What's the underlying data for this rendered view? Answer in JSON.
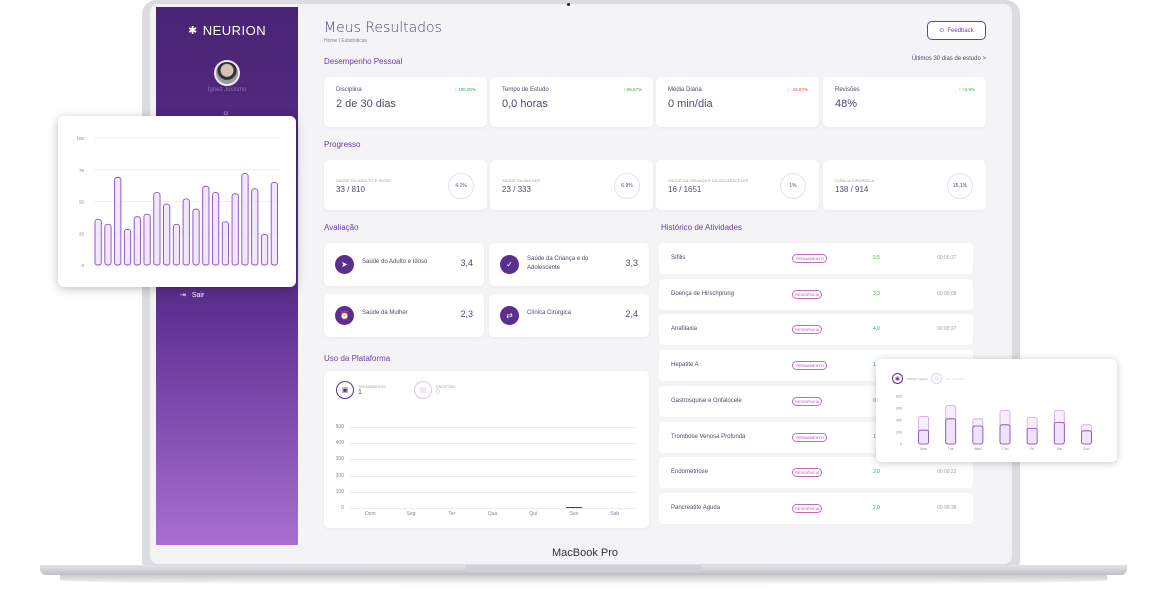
{
  "device": {
    "model": "MacBook Pro"
  },
  "sidebar": {
    "logo": "NEURION",
    "username": "Ignez Jocismo",
    "logout_label": "Sair"
  },
  "header": {
    "title": "Meus Resultados",
    "breadcrumb": "Home  |  Estatísticas",
    "feedback_label": "Feedback"
  },
  "desempenho": {
    "title": "Desempenho Pessoal",
    "period": "Últimos 30 dias de estudo  >",
    "cards": [
      {
        "label": "Disciplina",
        "value": "2 de 30 dias",
        "change": "↑  100,00%",
        "trend": "up"
      },
      {
        "label": "Tempo de Estudo",
        "value": "0,0 horas",
        "change": "↑  66,67%",
        "trend": "up"
      },
      {
        "label": "Média Diária",
        "value": "0 min/dia",
        "change": "↓  -16,67%",
        "trend": "down"
      },
      {
        "label": "Revisões",
        "value": "48%",
        "change": "↑  +3,9%",
        "trend": "up"
      }
    ]
  },
  "progresso": {
    "title": "Progresso",
    "cards": [
      {
        "label": "Saúde do Adulto e Idoso",
        "value": "33 / 810",
        "percent": "4.1%"
      },
      {
        "label": "Saúde da Mulher",
        "value": "23 / 333",
        "percent": "6.9%"
      },
      {
        "label": "Saúde da Criança e do Adolescente",
        "value": "16 / 1651",
        "percent": "1%"
      },
      {
        "label": "Clínica Cirúrgica",
        "value": "138 / 914",
        "percent": "15.1%"
      }
    ]
  },
  "avaliacao": {
    "title": "Avaliação",
    "cards": [
      {
        "label": "Saúde do Adulto e Idoso",
        "value": "3,4",
        "icon": "send-icon"
      },
      {
        "label": "Saúde da Criança e do Adolescente",
        "value": "3,3",
        "icon": "check-icon"
      },
      {
        "label": "Saúde da Mulher",
        "value": "2,3",
        "icon": "alarm-icon"
      },
      {
        "label": "Clínica Cirúrgica",
        "value": "2,4",
        "icon": "swap-icon"
      }
    ]
  },
  "uso": {
    "title": "Uso da Plataforma",
    "tabs": [
      {
        "label": "Treinamentos",
        "value": "1"
      },
      {
        "label": "Questões",
        "value": "0"
      }
    ],
    "chart_data": {
      "type": "bar",
      "categories": [
        "Dom",
        "Seg",
        "Ter",
        "Qua",
        "Qui",
        "Sex",
        "Sab"
      ],
      "values": [
        0,
        0,
        0,
        0,
        0,
        1,
        0
      ],
      "yticks": [
        "500",
        "400",
        "300",
        "200",
        "100",
        "0"
      ],
      "ylim": [
        0,
        500
      ]
    }
  },
  "historico": {
    "title": "Histórico de Atividades",
    "rows": [
      {
        "name": "Sífilis",
        "type": "Treinamento",
        "score": "3,5",
        "time": "00:00:37"
      },
      {
        "name": "Doença de Hirschprung",
        "type": "Residência",
        "score": "3,3",
        "time": "00:00:08"
      },
      {
        "name": "Anafilaxia",
        "type": "Residência",
        "score": "4,0",
        "time": "00:00:27"
      },
      {
        "name": "Hepatite A",
        "type": "Treinamento",
        "score": "1,",
        "time": ""
      },
      {
        "name": "Gastrosquise e Onfalocele",
        "type": "Residência",
        "score": "0,",
        "time": ""
      },
      {
        "name": "Trombose Venosa Profunda",
        "type": "Treinamento",
        "score": "1,",
        "time": ""
      },
      {
        "name": "Endometriose",
        "type": "Residência",
        "score": "2,0",
        "time": "00:00:22"
      },
      {
        "name": "Pancreatite Aguda",
        "type": "Residência",
        "score": "2,0",
        "time": "00:00:38"
      }
    ]
  },
  "popup_chart": {
    "chart_data": {
      "type": "bar",
      "yticks": [
        "100",
        "75",
        "50",
        "25",
        "0"
      ],
      "ylim": [
        0,
        100
      ],
      "values": [
        36,
        32,
        69,
        28,
        38,
        40,
        57,
        48,
        32,
        52,
        44,
        62,
        57,
        34,
        56,
        72,
        60,
        24,
        65
      ]
    }
  },
  "popup_chart_small": {
    "tabs": [
      {
        "label": "Treino Geral",
        "active": true
      },
      {
        "label": "Simu Geral",
        "active": false
      }
    ],
    "chart_data": {
      "type": "bar",
      "categories": [
        "Mon",
        "Tue",
        "Wed",
        "T hu",
        "Fri",
        "Sat",
        "Sun"
      ],
      "yticks": [
        "800",
        "600",
        "400",
        "200",
        "0"
      ],
      "ylim": [
        0,
        800
      ],
      "series": [
        {
          "values": [
            460,
            640,
            420,
            560,
            440,
            560,
            320
          ]
        },
        {
          "values": [
            230,
            420,
            300,
            320,
            260,
            360,
            220
          ]
        }
      ]
    }
  },
  "colors": {
    "brand": "#5b2f8e",
    "accent": "#6a3d9a",
    "up": "#3aa84b",
    "down": "#e0463b"
  }
}
